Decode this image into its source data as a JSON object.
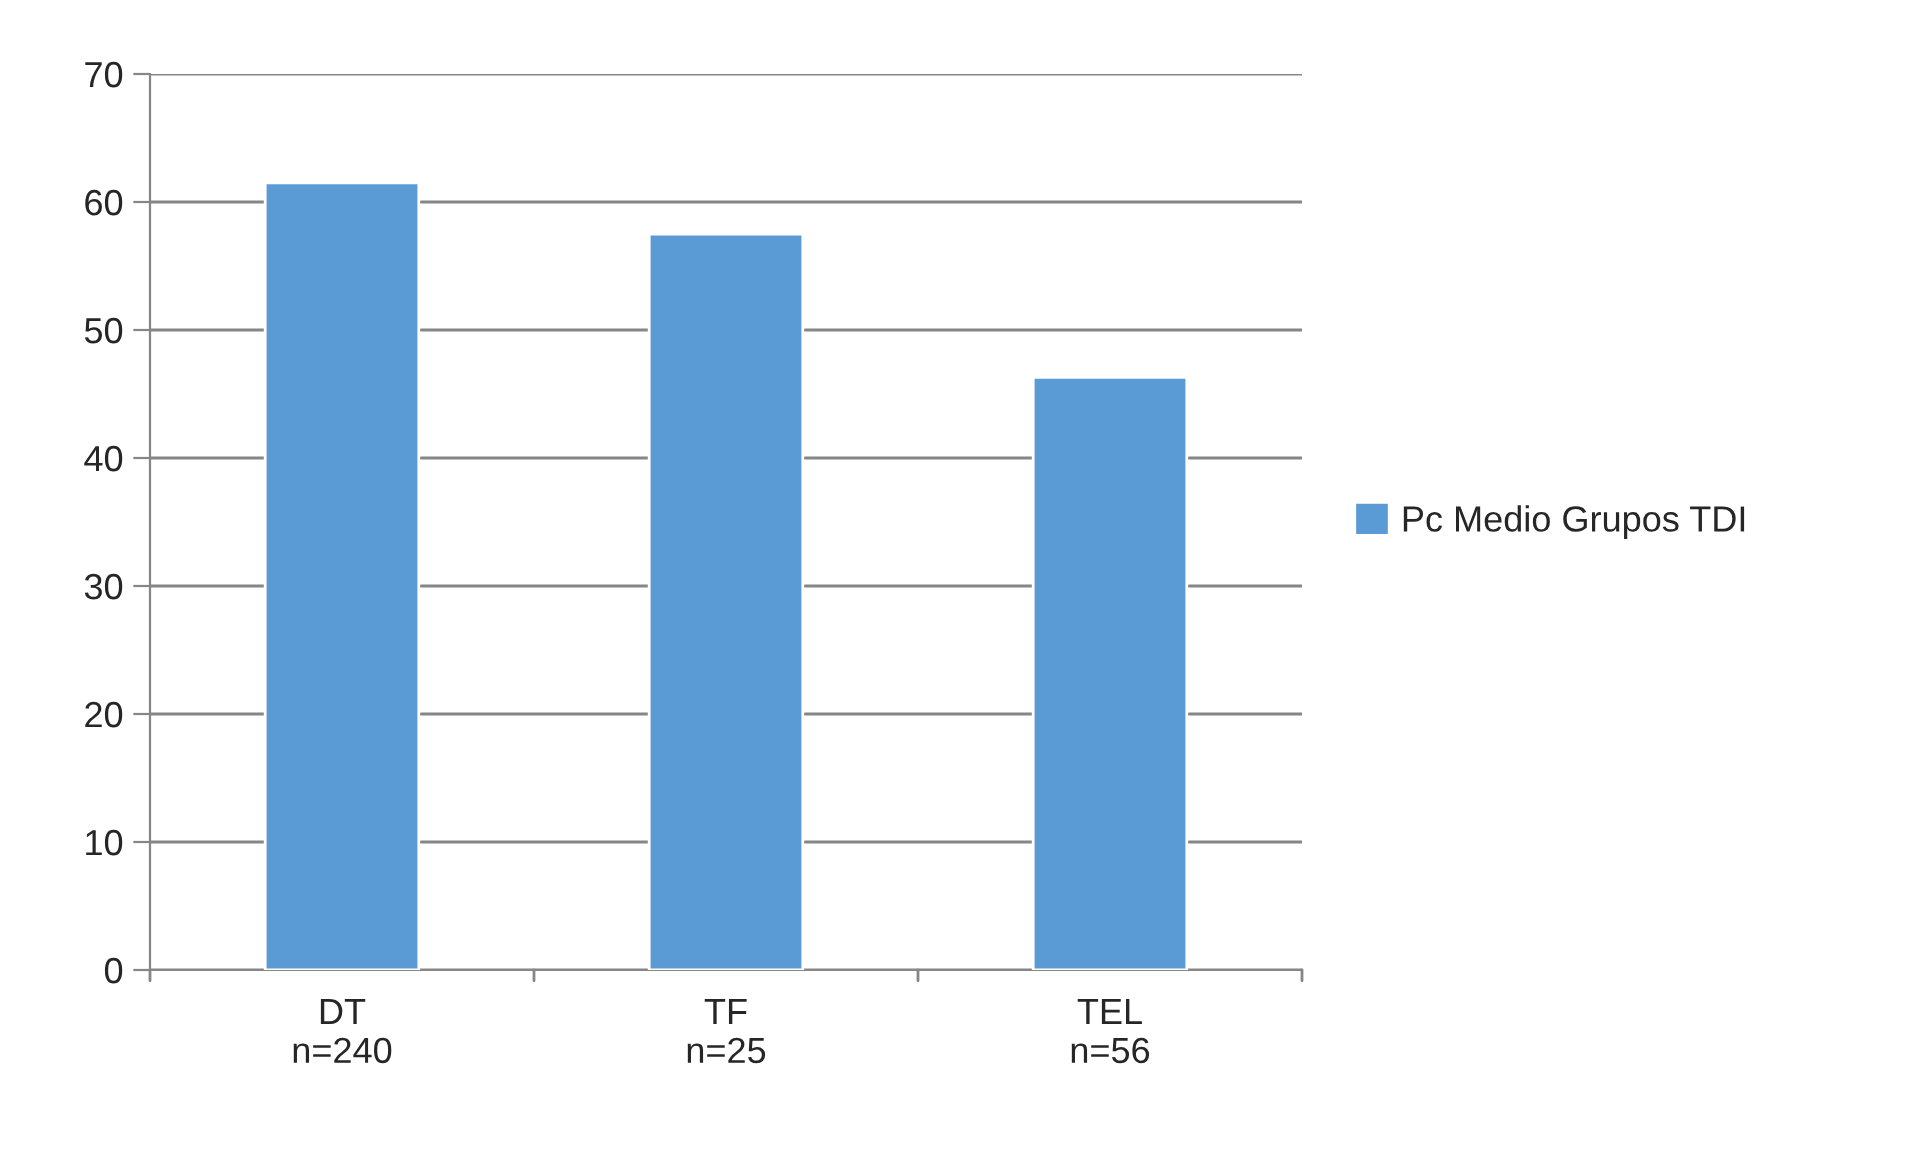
{
  "chart_data": {
    "type": "bar",
    "categories": [
      "DT\nn=240",
      "TF\nn=25",
      "TEL\nn=56"
    ],
    "series": [
      {
        "name": "Pc Medio Grupos TDI",
        "color": "#5b9bd5",
        "values": [
          61.5,
          57.5,
          46.3
        ]
      }
    ],
    "ylim": [
      0,
      70
    ],
    "yticks": [
      0,
      10,
      20,
      30,
      40,
      50,
      60,
      70
    ],
    "grid": "y",
    "legend": "right"
  }
}
